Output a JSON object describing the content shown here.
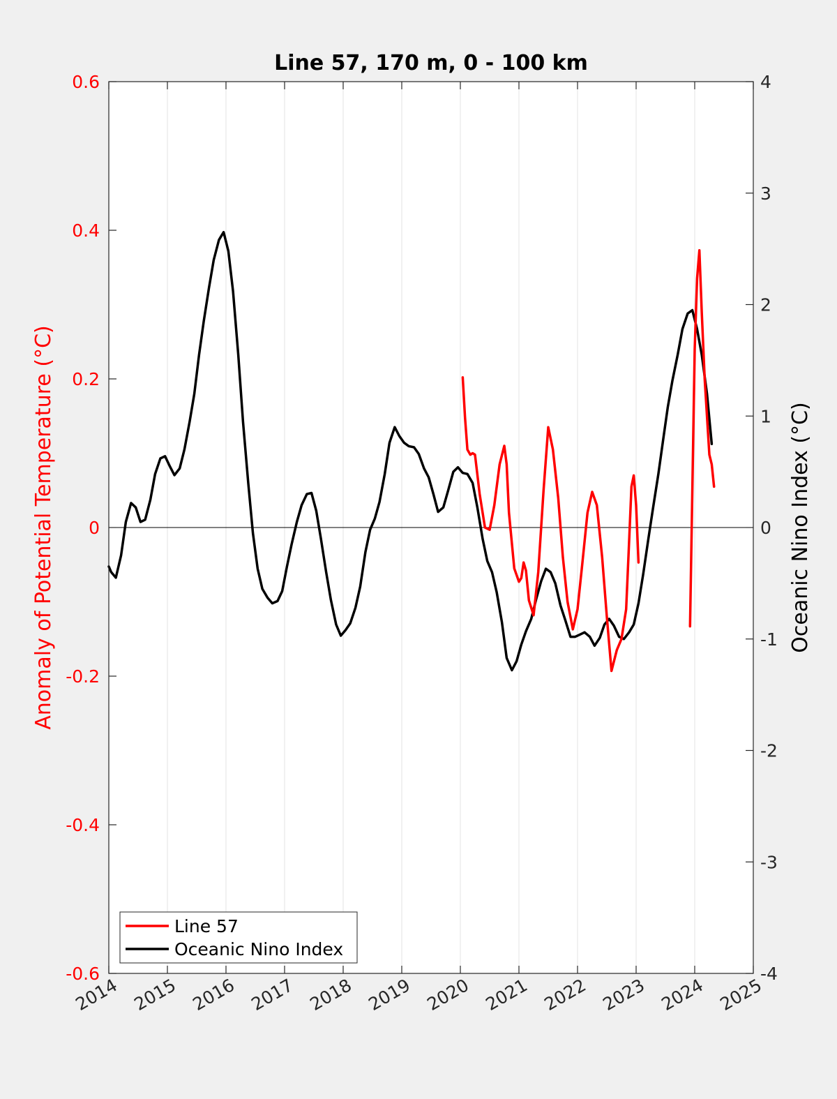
{
  "chart_data": {
    "type": "line",
    "title": "Line 57, 170 m, 0 - 100 km",
    "xlim": [
      2014,
      2025
    ],
    "xticks": [
      "2014",
      "2015",
      "2016",
      "2017",
      "2018",
      "2019",
      "2020",
      "2021",
      "2022",
      "2023",
      "2024",
      "2025"
    ],
    "grid_x": true,
    "left_axis": {
      "label": "Anomaly of Potential Temperature (°C)",
      "ylim": [
        -0.6,
        0.6
      ],
      "ticks": [
        "0.6",
        "0.4",
        "0.2",
        "0",
        "-0.2",
        "-0.4",
        "-0.6"
      ],
      "color": "#ff0000"
    },
    "right_axis": {
      "label": "Oceanic Nino Index (°C)",
      "ylim": [
        -4,
        4
      ],
      "ticks": [
        "4",
        "3",
        "2",
        "1",
        "0",
        "-1",
        "-2",
        "-3",
        "-4"
      ],
      "color": "#000000"
    },
    "zero_line": true,
    "legend": {
      "location": "bottom-left",
      "entries": [
        "Line 57",
        "Oceanic Nino Index"
      ]
    },
    "series": [
      {
        "name": "Line 57",
        "axis": "left",
        "color": "#ff0000",
        "segments": [
          [
            [
              2020.04,
              0.202
            ],
            [
              2020.08,
              0.148
            ],
            [
              2020.12,
              0.105
            ],
            [
              2020.17,
              0.098
            ],
            [
              2020.21,
              0.1
            ],
            [
              2020.25,
              0.098
            ],
            [
              2020.33,
              0.045
            ],
            [
              2020.42,
              0.0
            ],
            [
              2020.5,
              -0.003
            ],
            [
              2020.58,
              0.03
            ],
            [
              2020.67,
              0.085
            ],
            [
              2020.75,
              0.11
            ],
            [
              2020.79,
              0.085
            ],
            [
              2020.83,
              0.02
            ],
            [
              2020.92,
              -0.055
            ],
            [
              2021.0,
              -0.073
            ],
            [
              2021.04,
              -0.068
            ],
            [
              2021.08,
              -0.047
            ],
            [
              2021.12,
              -0.058
            ],
            [
              2021.17,
              -0.098
            ],
            [
              2021.25,
              -0.118
            ],
            [
              2021.33,
              -0.06
            ],
            [
              2021.42,
              0.05
            ],
            [
              2021.5,
              0.135
            ],
            [
              2021.58,
              0.105
            ],
            [
              2021.67,
              0.04
            ],
            [
              2021.75,
              -0.04
            ],
            [
              2021.83,
              -0.1
            ],
            [
              2021.92,
              -0.137
            ],
            [
              2022.0,
              -0.11
            ],
            [
              2022.08,
              -0.05
            ],
            [
              2022.17,
              0.02
            ],
            [
              2022.25,
              0.048
            ],
            [
              2022.33,
              0.03
            ],
            [
              2022.42,
              -0.04
            ],
            [
              2022.5,
              -0.12
            ],
            [
              2022.58,
              -0.193
            ],
            [
              2022.67,
              -0.165
            ],
            [
              2022.75,
              -0.15
            ],
            [
              2022.83,
              -0.11
            ],
            [
              2022.88,
              -0.02
            ],
            [
              2022.92,
              0.055
            ],
            [
              2022.96,
              0.07
            ],
            [
              2023.0,
              0.03
            ],
            [
              2023.04,
              -0.047
            ]
          ],
          [
            [
              2023.92,
              -0.133
            ],
            [
              2023.96,
              0.05
            ],
            [
              2024.0,
              0.24
            ],
            [
              2024.04,
              0.335
            ],
            [
              2024.08,
              0.373
            ],
            [
              2024.12,
              0.29
            ],
            [
              2024.17,
              0.2
            ],
            [
              2024.25,
              0.098
            ],
            [
              2024.29,
              0.085
            ],
            [
              2024.33,
              0.055
            ]
          ]
        ]
      },
      {
        "name": "Oceanic Nino Index",
        "axis": "right",
        "color": "#000000",
        "segments": [
          [
            [
              2014.0,
              -0.35
            ],
            [
              2014.04,
              -0.4
            ],
            [
              2014.12,
              -0.45
            ],
            [
              2014.21,
              -0.25
            ],
            [
              2014.29,
              0.05
            ],
            [
              2014.38,
              0.22
            ],
            [
              2014.46,
              0.18
            ],
            [
              2014.54,
              0.05
            ],
            [
              2014.62,
              0.07
            ],
            [
              2014.71,
              0.25
            ],
            [
              2014.79,
              0.48
            ],
            [
              2014.88,
              0.62
            ],
            [
              2014.96,
              0.64
            ],
            [
              2015.04,
              0.55
            ],
            [
              2015.12,
              0.47
            ],
            [
              2015.21,
              0.53
            ],
            [
              2015.29,
              0.7
            ],
            [
              2015.38,
              0.95
            ],
            [
              2015.46,
              1.2
            ],
            [
              2015.54,
              1.55
            ],
            [
              2015.62,
              1.85
            ],
            [
              2015.71,
              2.15
            ],
            [
              2015.79,
              2.4
            ],
            [
              2015.88,
              2.58
            ],
            [
              2015.96,
              2.65
            ],
            [
              2016.04,
              2.48
            ],
            [
              2016.12,
              2.12
            ],
            [
              2016.21,
              1.55
            ],
            [
              2016.29,
              0.95
            ],
            [
              2016.38,
              0.4
            ],
            [
              2016.46,
              -0.05
            ],
            [
              2016.54,
              -0.37
            ],
            [
              2016.62,
              -0.55
            ],
            [
              2016.71,
              -0.63
            ],
            [
              2016.79,
              -0.68
            ],
            [
              2016.88,
              -0.66
            ],
            [
              2016.96,
              -0.57
            ],
            [
              2017.04,
              -0.35
            ],
            [
              2017.12,
              -0.15
            ],
            [
              2017.21,
              0.05
            ],
            [
              2017.29,
              0.2
            ],
            [
              2017.38,
              0.3
            ],
            [
              2017.46,
              0.31
            ],
            [
              2017.54,
              0.15
            ],
            [
              2017.62,
              -0.1
            ],
            [
              2017.71,
              -0.4
            ],
            [
              2017.79,
              -0.65
            ],
            [
              2017.88,
              -0.87
            ],
            [
              2017.96,
              -0.97
            ],
            [
              2018.04,
              -0.92
            ],
            [
              2018.12,
              -0.86
            ],
            [
              2018.21,
              -0.72
            ],
            [
              2018.29,
              -0.53
            ],
            [
              2018.38,
              -0.22
            ],
            [
              2018.46,
              -0.02
            ],
            [
              2018.54,
              0.08
            ],
            [
              2018.62,
              0.23
            ],
            [
              2018.71,
              0.48
            ],
            [
              2018.79,
              0.76
            ],
            [
              2018.88,
              0.9
            ],
            [
              2018.96,
              0.82
            ],
            [
              2019.04,
              0.76
            ],
            [
              2019.12,
              0.73
            ],
            [
              2019.21,
              0.72
            ],
            [
              2019.29,
              0.66
            ],
            [
              2019.38,
              0.53
            ],
            [
              2019.46,
              0.45
            ],
            [
              2019.54,
              0.3
            ],
            [
              2019.62,
              0.14
            ],
            [
              2019.71,
              0.18
            ],
            [
              2019.79,
              0.33
            ],
            [
              2019.88,
              0.5
            ],
            [
              2019.96,
              0.54
            ],
            [
              2020.04,
              0.49
            ],
            [
              2020.12,
              0.48
            ],
            [
              2020.21,
              0.4
            ],
            [
              2020.29,
              0.18
            ],
            [
              2020.38,
              -0.1
            ],
            [
              2020.46,
              -0.3
            ],
            [
              2020.54,
              -0.4
            ],
            [
              2020.62,
              -0.58
            ],
            [
              2020.71,
              -0.85
            ],
            [
              2020.79,
              -1.17
            ],
            [
              2020.88,
              -1.28
            ],
            [
              2020.96,
              -1.2
            ],
            [
              2021.04,
              -1.05
            ],
            [
              2021.12,
              -0.93
            ],
            [
              2021.21,
              -0.82
            ],
            [
              2021.29,
              -0.65
            ],
            [
              2021.38,
              -0.48
            ],
            [
              2021.46,
              -0.37
            ],
            [
              2021.54,
              -0.4
            ],
            [
              2021.62,
              -0.5
            ],
            [
              2021.71,
              -0.7
            ],
            [
              2021.79,
              -0.83
            ],
            [
              2021.88,
              -0.98
            ],
            [
              2021.96,
              -0.98
            ],
            [
              2022.04,
              -0.96
            ],
            [
              2022.12,
              -0.94
            ],
            [
              2022.21,
              -0.98
            ],
            [
              2022.29,
              -1.06
            ],
            [
              2022.38,
              -0.99
            ],
            [
              2022.46,
              -0.87
            ],
            [
              2022.54,
              -0.82
            ],
            [
              2022.62,
              -0.88
            ],
            [
              2022.71,
              -0.98
            ],
            [
              2022.79,
              -1.0
            ],
            [
              2022.88,
              -0.94
            ],
            [
              2022.96,
              -0.87
            ],
            [
              2023.04,
              -0.68
            ],
            [
              2023.12,
              -0.42
            ],
            [
              2023.21,
              -0.1
            ],
            [
              2023.29,
              0.18
            ],
            [
              2023.38,
              0.48
            ],
            [
              2023.46,
              0.78
            ],
            [
              2023.54,
              1.08
            ],
            [
              2023.62,
              1.32
            ],
            [
              2023.71,
              1.55
            ],
            [
              2023.79,
              1.78
            ],
            [
              2023.88,
              1.92
            ],
            [
              2023.96,
              1.95
            ],
            [
              2024.04,
              1.78
            ],
            [
              2024.12,
              1.55
            ],
            [
              2024.21,
              1.2
            ],
            [
              2024.29,
              0.75
            ]
          ]
        ]
      }
    ]
  }
}
